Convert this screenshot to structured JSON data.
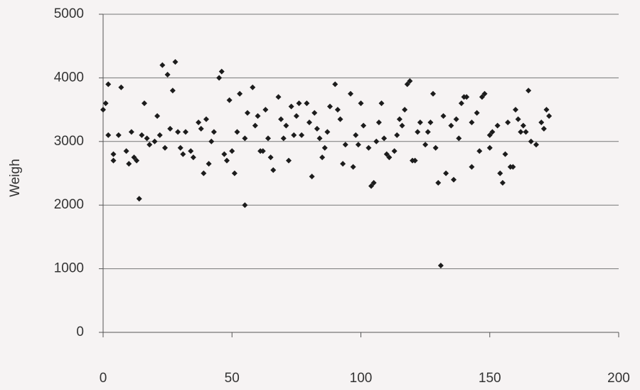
{
  "chart_data": {
    "type": "scatter",
    "y_label": "Weigh",
    "color": "#1c1c1c",
    "xlim": [
      0,
      200
    ],
    "xticks": [
      0,
      50,
      100,
      150,
      200
    ],
    "ylim": [
      0,
      5000
    ],
    "yticks": [
      0,
      1000,
      2000,
      3000,
      4000,
      5000
    ],
    "grid": true,
    "x": [
      0,
      1,
      2,
      2,
      4,
      4,
      6,
      7,
      9,
      10,
      11,
      12,
      13,
      14,
      15,
      16,
      17,
      18,
      20,
      21,
      22,
      23,
      24,
      25,
      26,
      27,
      28,
      29,
      30,
      31,
      32,
      34,
      35,
      37,
      38,
      39,
      40,
      41,
      42,
      43,
      45,
      46,
      47,
      48,
      49,
      50,
      51,
      52,
      53,
      55,
      55,
      56,
      58,
      59,
      60,
      61,
      62,
      63,
      64,
      65,
      66,
      68,
      69,
      70,
      71,
      72,
      73,
      74,
      75,
      76,
      77,
      79,
      80,
      81,
      82,
      83,
      84,
      85,
      86,
      87,
      88,
      90,
      91,
      92,
      93,
      94,
      96,
      97,
      98,
      99,
      100,
      101,
      103,
      104,
      105,
      106,
      107,
      108,
      109,
      110,
      111,
      113,
      114,
      115,
      116,
      117,
      118,
      119,
      120,
      121,
      122,
      123,
      125,
      126,
      127,
      128,
      129,
      130,
      131,
      132,
      133,
      135,
      136,
      137,
      138,
      139,
      140,
      141,
      143,
      143,
      145,
      146,
      147,
      148,
      150,
      150,
      151,
      153,
      154,
      155,
      156,
      157,
      158,
      159,
      160,
      161,
      162,
      163,
      164,
      165,
      166,
      168,
      170,
      171,
      172,
      173
    ],
    "y": [
      3500,
      3600,
      3900,
      3100,
      2700,
      2800,
      3100,
      3850,
      2850,
      2650,
      3150,
      2750,
      2700,
      2100,
      3100,
      3600,
      3050,
      2950,
      3000,
      3400,
      3100,
      4200,
      2900,
      4050,
      3200,
      3800,
      4250,
      3150,
      2900,
      2800,
      3150,
      2850,
      2750,
      3300,
      3200,
      2500,
      3350,
      2650,
      3000,
      3150,
      4000,
      4100,
      2800,
      2700,
      3650,
      2850,
      2500,
      3150,
      3750,
      3050,
      2000,
      3450,
      3850,
      3250,
      3400,
      2850,
      2850,
      3500,
      3050,
      2750,
      2550,
      3700,
      3350,
      3050,
      3250,
      2700,
      3550,
      3100,
      3400,
      3600,
      3100,
      3600,
      3300,
      2450,
      3450,
      3200,
      3050,
      2750,
      2900,
      3150,
      3550,
      3900,
      3500,
      3350,
      2650,
      2950,
      3750,
      2600,
      3100,
      2950,
      3600,
      3250,
      2900,
      2300,
      2350,
      3000,
      3300,
      3600,
      3050,
      2800,
      2750,
      2850,
      3100,
      3350,
      3250,
      3500,
      3900,
      3950,
      2700,
      2700,
      3150,
      3300,
      2950,
      3150,
      3300,
      3750,
      2900,
      2350,
      1050,
      3400,
      2500,
      3250,
      2400,
      3350,
      3050,
      3600,
      3700,
      3700,
      3300,
      2600,
      3450,
      2850,
      3700,
      3750,
      2900,
      3100,
      3150,
      3250,
      2500,
      2350,
      2800,
      3300,
      2600,
      2600,
      3500,
      3350,
      3150,
      3250,
      3150,
      3800,
      3000,
      2950,
      3300,
      3200,
      3500,
      3400
    ]
  }
}
